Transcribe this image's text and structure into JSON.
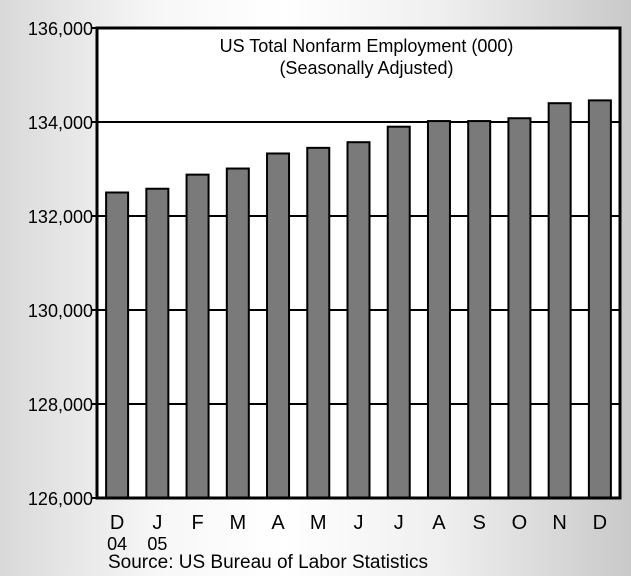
{
  "chart_data": {
    "type": "bar",
    "title": "US Total Nonfarm Employment (000)",
    "subtitle": "(Seasonally Adjusted)",
    "categories": [
      {
        "label": "D",
        "sublabel": "04"
      },
      {
        "label": "J",
        "sublabel": "05"
      },
      {
        "label": "F",
        "sublabel": ""
      },
      {
        "label": "M",
        "sublabel": ""
      },
      {
        "label": "A",
        "sublabel": ""
      },
      {
        "label": "M",
        "sublabel": ""
      },
      {
        "label": "J",
        "sublabel": ""
      },
      {
        "label": "J",
        "sublabel": ""
      },
      {
        "label": "A",
        "sublabel": ""
      },
      {
        "label": "S",
        "sublabel": ""
      },
      {
        "label": "O",
        "sublabel": ""
      },
      {
        "label": "N",
        "sublabel": ""
      },
      {
        "label": "D",
        "sublabel": ""
      }
    ],
    "values": [
      132500,
      132580,
      132880,
      133010,
      133330,
      133450,
      133570,
      133900,
      134020,
      134020,
      134080,
      134400,
      134460
    ],
    "ylim": [
      126000,
      136000
    ],
    "yticks": [
      "126,000",
      "128,000",
      "130,000",
      "132,000",
      "134,000",
      "136,000"
    ],
    "ytick_values": [
      126000,
      128000,
      130000,
      132000,
      134000,
      136000
    ],
    "grid": true,
    "source": "Source: US Bureau of Labor Statistics",
    "colors": {
      "bar": "#7a7a7a",
      "frame": "#000000",
      "plot_bg": "#ffffff"
    }
  }
}
